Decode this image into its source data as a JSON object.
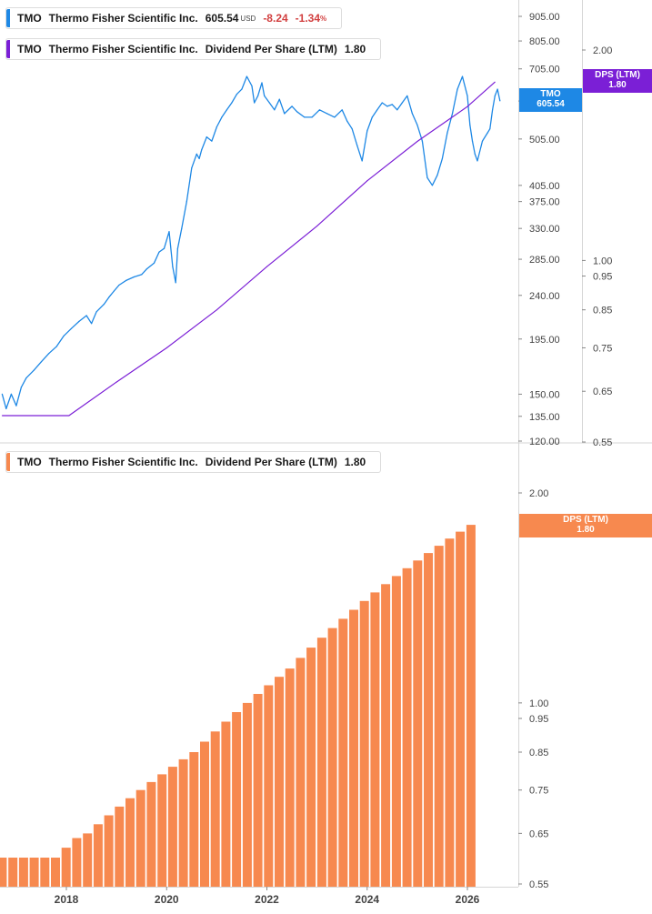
{
  "colors": {
    "price_line": "#1e88e5",
    "dps_line": "#7b1fd6",
    "bars": "#f7894f",
    "negative": "#d23f3f",
    "axis_text": "#444444",
    "grid": "#cccccc"
  },
  "legends": {
    "price": {
      "ticker": "TMO",
      "name": "Thermo Fisher Scientific Inc.",
      "price": "605.54",
      "currency": "USD",
      "change": "-8.24",
      "change_pct": "-1.34",
      "pct_symbol": "%"
    },
    "dps_top": {
      "ticker": "TMO",
      "name": "Thermo Fisher Scientific Inc.",
      "metric": "Dividend Per Share (LTM)",
      "value": "1.80"
    },
    "dps_bottom": {
      "ticker": "TMO",
      "name": "Thermo Fisher Scientific Inc.",
      "metric": "Dividend Per Share (LTM)",
      "value": "1.80"
    }
  },
  "tags": {
    "price": {
      "label": "TMO",
      "value": "605.54"
    },
    "dps_top": {
      "label": "DPS (LTM)",
      "value": "1.80"
    },
    "dps_bottom": {
      "label": "DPS (LTM)",
      "value": "1.80"
    }
  },
  "chart_data": [
    {
      "type": "line",
      "scale": "log",
      "axis": "price",
      "y_ticks": [
        905,
        805,
        705,
        605,
        505,
        405,
        375,
        330,
        285,
        240,
        195,
        150,
        135,
        120
      ],
      "y_tick_labels": [
        "905.00",
        "805.00",
        "705.00",
        "605.00",
        "505.00",
        "405.00",
        "375.00",
        "330.00",
        "285.00",
        "240.00",
        "195.00",
        "150.00",
        "135.00",
        "120.00"
      ],
      "series": [
        {
          "name": "TMO",
          "x": [
            2016.72,
            2016.8,
            2016.9,
            2017.0,
            2017.1,
            2017.2,
            2017.35,
            2017.5,
            2017.65,
            2017.8,
            2017.95,
            2018.1,
            2018.25,
            2018.4,
            2018.5,
            2018.6,
            2018.75,
            2018.85,
            2018.95,
            2019.05,
            2019.2,
            2019.35,
            2019.5,
            2019.6,
            2019.75,
            2019.85,
            2019.95,
            2020.05,
            2020.12,
            2020.18,
            2020.22,
            2020.3,
            2020.4,
            2020.5,
            2020.6,
            2020.65,
            2020.7,
            2020.8,
            2020.9,
            2021.0,
            2021.1,
            2021.2,
            2021.3,
            2021.4,
            2021.5,
            2021.6,
            2021.7,
            2021.75,
            2021.82,
            2021.9,
            2021.95,
            2022.05,
            2022.15,
            2022.25,
            2022.35,
            2022.5,
            2022.6,
            2022.75,
            2022.9,
            2023.05,
            2023.2,
            2023.35,
            2023.5,
            2023.6,
            2023.7,
            2023.8,
            2023.9,
            2024.0,
            2024.1,
            2024.2,
            2024.3,
            2024.4,
            2024.5,
            2024.6,
            2024.7,
            2024.8,
            2024.9,
            2025.0,
            2025.1,
            2025.2,
            2025.3,
            2025.4,
            2025.5,
            2025.6,
            2025.7,
            2025.8,
            2025.9,
            2026.0,
            2026.05,
            2026.1,
            2026.15,
            2026.2,
            2026.3,
            2026.4,
            2026.45,
            2026.5,
            2026.55,
            2026.6,
            2026.65
          ],
          "values": [
            150,
            140,
            150,
            142,
            155,
            162,
            168,
            175,
            182,
            188,
            198,
            205,
            212,
            218,
            210,
            222,
            230,
            238,
            245,
            252,
            258,
            262,
            265,
            272,
            280,
            295,
            300,
            325,
            275,
            255,
            300,
            330,
            375,
            440,
            470,
            460,
            480,
            510,
            500,
            535,
            560,
            580,
            600,
            625,
            640,
            680,
            650,
            600,
            620,
            660,
            620,
            600,
            580,
            610,
            570,
            590,
            575,
            560,
            560,
            580,
            570,
            560,
            580,
            550,
            530,
            490,
            455,
            525,
            560,
            580,
            600,
            590,
            595,
            580,
            600,
            620,
            570,
            540,
            500,
            420,
            405,
            425,
            460,
            520,
            570,
            640,
            680,
            620,
            540,
            500,
            470,
            455,
            500,
            520,
            530,
            580,
            620,
            640,
            605.54
          ]
        },
        {
          "name": "DPS (LTM)",
          "axis": "dps",
          "x": [
            2016.72,
            2017.0,
            2017.5,
            2018.0,
            2018.05,
            2019.0,
            2020.0,
            2021.0,
            2022.0,
            2023.0,
            2024.0,
            2025.0,
            2026.0,
            2026.55
          ],
          "values": [
            0.6,
            0.6,
            0.6,
            0.6,
            0.6,
            0.67,
            0.75,
            0.85,
            0.98,
            1.12,
            1.3,
            1.48,
            1.66,
            1.8
          ]
        }
      ]
    },
    {
      "type": "bar",
      "axis": "dps",
      "series": [
        {
          "name": "Dividend Per Share (LTM)",
          "values": [
            0.6,
            0.6,
            0.6,
            0.6,
            0.6,
            0.6,
            0.62,
            0.64,
            0.65,
            0.67,
            0.69,
            0.71,
            0.73,
            0.75,
            0.77,
            0.79,
            0.81,
            0.83,
            0.85,
            0.88,
            0.91,
            0.94,
            0.97,
            1.0,
            1.03,
            1.06,
            1.09,
            1.12,
            1.16,
            1.2,
            1.24,
            1.28,
            1.32,
            1.36,
            1.4,
            1.44,
            1.48,
            1.52,
            1.56,
            1.6,
            1.64,
            1.68,
            1.72,
            1.76,
            1.8
          ],
          "start_year": 2016.72,
          "step_years": 0.2125
        }
      ]
    }
  ],
  "dps_axis": {
    "top_ticks": [
      2.0,
      1.0,
      0.95,
      0.85,
      0.75,
      0.65,
      0.55
    ],
    "top_tick_labels": [
      "2.00",
      "1.00",
      "0.95",
      "0.85",
      "0.75",
      "0.65",
      "0.55"
    ],
    "bottom_ticks": [
      2.0,
      1.0,
      0.95,
      0.85,
      0.75,
      0.65,
      0.55
    ],
    "bottom_tick_labels": [
      "2.00",
      "1.00",
      "0.95",
      "0.85",
      "0.75",
      "0.65",
      "0.55"
    ]
  },
  "x_axis": {
    "ticks": [
      2018,
      2020,
      2022,
      2024,
      2026
    ],
    "tick_labels": [
      "2018",
      "2020",
      "2022",
      "2024",
      "2026"
    ]
  }
}
